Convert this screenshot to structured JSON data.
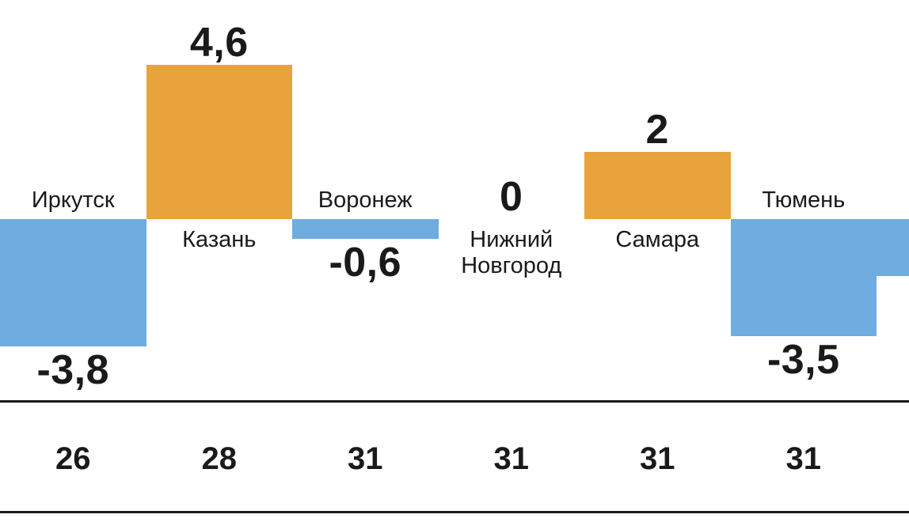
{
  "chart_data": {
    "type": "bar",
    "title": "",
    "xlabel": "",
    "ylabel": "",
    "ylim": [
      -4.6,
      4.6
    ],
    "grid": false,
    "legend": false,
    "categories": [
      "Иркутск",
      "Казань",
      "Воронеж",
      "Нижний Новгород",
      "Самара",
      "Тюмень"
    ],
    "values": [
      -3.8,
      4.6,
      -0.6,
      0,
      2,
      -3.5
    ],
    "bottom_labels": [
      "26",
      "28",
      "31",
      "31",
      "31",
      "31"
    ],
    "points": [
      {
        "city": "Иркутск",
        "value": -3.8,
        "value_label": "-3,8",
        "day": "26"
      },
      {
        "city": "Казань",
        "value": 4.6,
        "value_label": "4,6",
        "day": "28"
      },
      {
        "city": "Воронеж",
        "value": -0.6,
        "value_label": "-0,6",
        "day": "31"
      },
      {
        "city": "Нижний Новгород",
        "value": 0,
        "value_label": "0",
        "day": "31"
      },
      {
        "city": "Самара",
        "value": 2,
        "value_label": "2",
        "day": "31"
      },
      {
        "city": "Тюмень",
        "value": -3.5,
        "value_label": "-3,5",
        "day": "31"
      }
    ],
    "partial_next_bar": {
      "visible": true,
      "approx_value": -1.7
    },
    "colors": {
      "positive_bar": "#E8A33C",
      "negative_bar": "#6FACDF",
      "text": "#1A1A1A",
      "divider": "#1A1A1A",
      "background": "#FFFFFF"
    }
  }
}
